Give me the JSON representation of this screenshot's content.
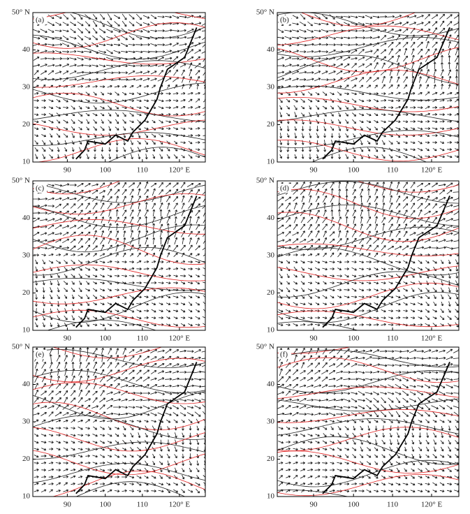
{
  "panels": [
    {
      "label": "(a)"
    },
    {
      "label": "(b)"
    },
    {
      "label": "(c)"
    },
    {
      "label": "(d)"
    },
    {
      "label": "(e)"
    },
    {
      "label": "(f)"
    }
  ],
  "y_tick_labels": [
    "50° N",
    "40",
    "30",
    "20",
    "10"
  ],
  "x_tick_labels": [
    "90",
    "100",
    "110",
    "120° E"
  ]
}
